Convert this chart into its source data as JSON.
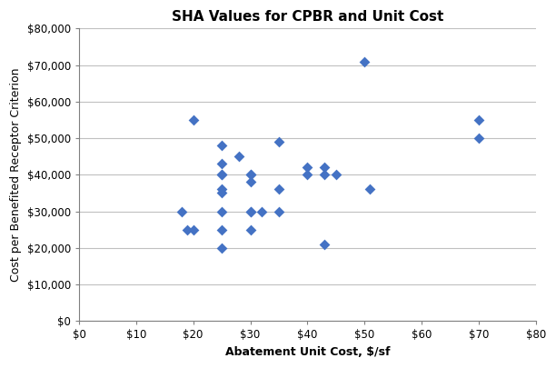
{
  "title": "SHA Values for CPBR and Unit Cost",
  "xlabel": "Abatement Unit Cost, $/sf",
  "ylabel": "Cost per Benefited Receptor Criterion",
  "xlim": [
    0,
    80
  ],
  "ylim": [
    0,
    80000
  ],
  "xticks": [
    0,
    10,
    20,
    30,
    40,
    50,
    60,
    70,
    80
  ],
  "yticks": [
    0,
    10000,
    20000,
    30000,
    40000,
    50000,
    60000,
    70000,
    80000
  ],
  "xtick_labels": [
    "$0",
    "$10",
    "$20",
    "$30",
    "$40",
    "$50",
    "$60",
    "$70",
    "$80"
  ],
  "ytick_labels": [
    "$0",
    "$10,000",
    "$20,000",
    "$30,000",
    "$40,000",
    "$50,000",
    "$60,000",
    "$70,000",
    "$80,000"
  ],
  "marker_color": "#4472C4",
  "marker_size": 6,
  "scatter_x": [
    18,
    19,
    20,
    20,
    25,
    25,
    25,
    25,
    25,
    25,
    25,
    25,
    25,
    28,
    30,
    30,
    30,
    30,
    30,
    30,
    32,
    35,
    35,
    35,
    40,
    40,
    43,
    43,
    43,
    45,
    50,
    51,
    70,
    70
  ],
  "scatter_y": [
    30000,
    25000,
    25000,
    55000,
    43000,
    30000,
    48000,
    40000,
    40000,
    36000,
    35000,
    25000,
    20000,
    45000,
    40000,
    40000,
    38000,
    30000,
    30000,
    25000,
    30000,
    49000,
    36000,
    30000,
    42000,
    40000,
    40000,
    42000,
    21000,
    40000,
    71000,
    36000,
    55000,
    50000
  ],
  "grid_color": "#c0c0c0",
  "grid_linewidth": 0.8,
  "spine_color": "#808080",
  "title_fontsize": 11,
  "label_fontsize": 9,
  "tick_fontsize": 8.5,
  "fig_width": 6.12,
  "fig_height": 4.05,
  "fig_dpi": 100
}
